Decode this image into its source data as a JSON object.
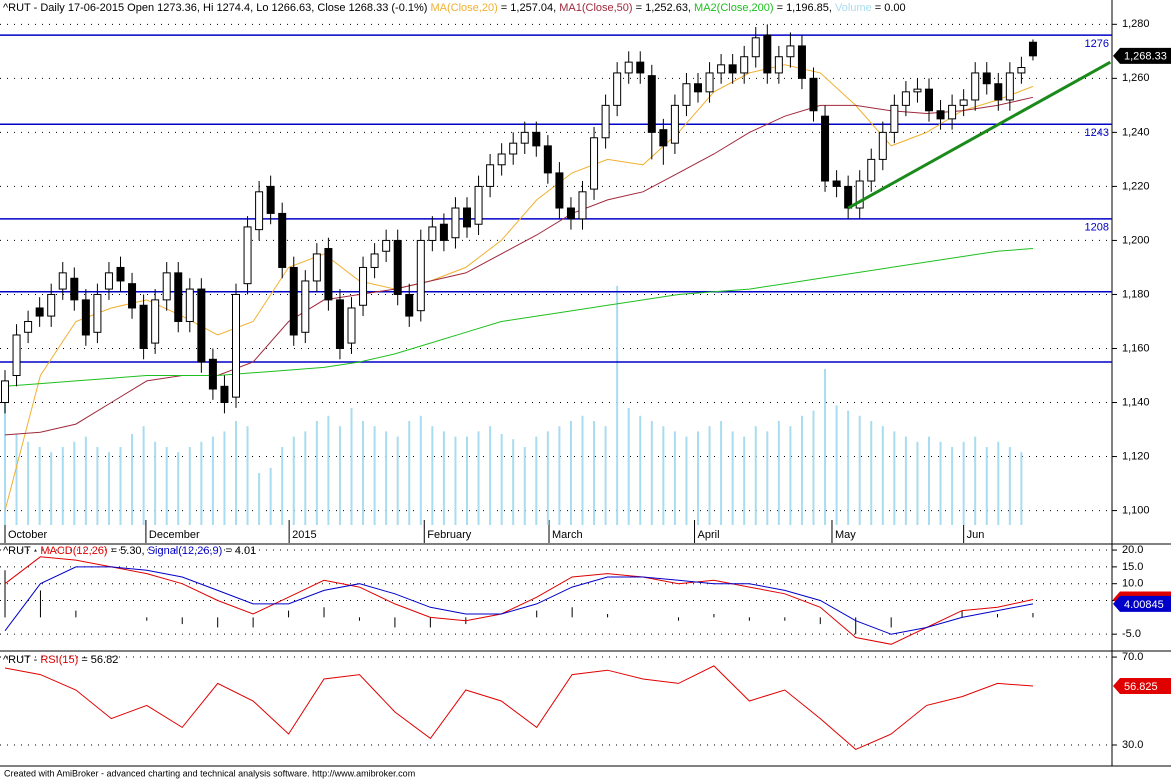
{
  "chart_data": {
    "type": "candlestick",
    "header": [
      {
        "text": "^RUT - Daily 17-06-2015 Open 1273.36, Hi 1274.4, Lo 1266.63, Close 1268.33 (-0.1%) ",
        "color": "#000000"
      },
      {
        "text": "MA(Close,20)",
        "color": "#f0b030"
      },
      {
        "text": " = 1,257.04, ",
        "color": "#000000"
      },
      {
        "text": "MA1(Close,50)",
        "color": "#a0283c"
      },
      {
        "text": " = 1,252.63, ",
        "color": "#000000"
      },
      {
        "text": "MA2(Close,200)",
        "color": "#1fbf1f"
      },
      {
        "text": " = 1,196.85, ",
        "color": "#000000"
      },
      {
        "text": "Volume",
        "color": "#a8dcf0"
      },
      {
        "text": " = 0.00",
        "color": "#000000"
      }
    ],
    "ylim": [
      1088,
      1289
    ],
    "yticks": [
      {
        "value": 1100,
        "label": "1,100"
      },
      {
        "value": 1120,
        "label": "1,120"
      },
      {
        "value": 1140,
        "label": "1,140"
      },
      {
        "value": 1160,
        "label": "1,160"
      },
      {
        "value": 1180,
        "label": "1,180"
      },
      {
        "value": 1200,
        "label": "1,200"
      },
      {
        "value": 1220,
        "label": "1,220"
      },
      {
        "value": 1240,
        "label": "1,240"
      },
      {
        "value": 1260,
        "label": "1,260"
      },
      {
        "value": 1280,
        "label": "1,280"
      }
    ],
    "xticks": [
      {
        "value": 0,
        "label": "October"
      },
      {
        "value": 12.2,
        "label": "December"
      },
      {
        "value": 24.6,
        "label": "2015"
      },
      {
        "value": 36.3,
        "label": "February"
      },
      {
        "value": 47.1,
        "label": "March"
      },
      {
        "value": 59.7,
        "label": "April"
      },
      {
        "value": 71.6,
        "label": "May"
      },
      {
        "value": 83,
        "label": "Jun"
      }
    ],
    "up_color": "#ffffff",
    "down_color": "#000000",
    "open": [
      1140,
      1150,
      1166,
      1175,
      1172,
      1182,
      1186,
      1178,
      1166,
      1182,
      1190,
      1184,
      1176,
      1162,
      1178,
      1188,
      1170,
      1182,
      1156,
      1146,
      1142,
      1184,
      1204,
      1220,
      1210,
      1190,
      1166,
      1185,
      1197,
      1178,
      1162,
      1176,
      1190,
      1196,
      1200,
      1180,
      1174,
      1200,
      1206,
      1201,
      1212,
      1206,
      1220,
      1228,
      1232,
      1236,
      1240,
      1235,
      1225,
      1212,
      1208,
      1219,
      1238,
      1250,
      1262,
      1266,
      1261,
      1241,
      1236,
      1250,
      1258,
      1255,
      1262,
      1265,
      1262,
      1268,
      1276,
      1262,
      1268,
      1272,
      1260,
      1246,
      1222,
      1220,
      1212,
      1222,
      1230,
      1240,
      1250,
      1255,
      1256,
      1248,
      1245,
      1250,
      1252,
      1262,
      1258,
      1252,
      1262,
      1273.36
    ],
    "high": [
      1152,
      1169,
      1174,
      1179,
      1184,
      1192,
      1190,
      1182,
      1184,
      1192,
      1194,
      1188,
      1180,
      1182,
      1192,
      1192,
      1186,
      1186,
      1160,
      1150,
      1184,
      1209,
      1222,
      1224,
      1214,
      1194,
      1189,
      1199,
      1201,
      1182,
      1179,
      1194,
      1199,
      1204,
      1204,
      1184,
      1204,
      1209,
      1210,
      1216,
      1216,
      1224,
      1232,
      1236,
      1240,
      1244,
      1244,
      1239,
      1229,
      1216,
      1222,
      1242,
      1254,
      1266,
      1270,
      1270,
      1265,
      1245,
      1254,
      1262,
      1262,
      1266,
      1269,
      1269,
      1272,
      1279,
      1280,
      1272,
      1277,
      1276,
      1264,
      1250,
      1226,
      1224,
      1226,
      1234,
      1244,
      1254,
      1259,
      1260,
      1260,
      1252,
      1254,
      1256,
      1266,
      1266,
      1262,
      1266,
      1268,
      1274.4
    ],
    "low": [
      1136,
      1146,
      1162,
      1168,
      1168,
      1178,
      1174,
      1161,
      1162,
      1178,
      1181,
      1171,
      1156,
      1158,
      1174,
      1166,
      1166,
      1151,
      1141,
      1136,
      1138,
      1180,
      1200,
      1206,
      1186,
      1161,
      1162,
      1181,
      1174,
      1156,
      1158,
      1172,
      1186,
      1192,
      1176,
      1168,
      1170,
      1196,
      1196,
      1197,
      1201,
      1202,
      1216,
      1224,
      1228,
      1232,
      1231,
      1221,
      1208,
      1204,
      1204,
      1215,
      1234,
      1246,
      1258,
      1258,
      1230,
      1228,
      1232,
      1246,
      1251,
      1251,
      1258,
      1258,
      1258,
      1264,
      1258,
      1258,
      1264,
      1256,
      1244,
      1218,
      1216,
      1208,
      1208,
      1218,
      1226,
      1236,
      1246,
      1251,
      1244,
      1241,
      1241,
      1246,
      1248,
      1254,
      1248,
      1248,
      1258,
      1266.63
    ],
    "close": [
      1148,
      1165,
      1170,
      1172,
      1180,
      1188,
      1178,
      1165,
      1180,
      1188,
      1185,
      1175,
      1160,
      1178,
      1188,
      1170,
      1182,
      1155,
      1145,
      1140,
      1180,
      1205,
      1218,
      1210,
      1190,
      1165,
      1185,
      1195,
      1178,
      1160,
      1175,
      1190,
      1195,
      1200,
      1180,
      1172,
      1200,
      1205,
      1200,
      1212,
      1205,
      1220,
      1228,
      1232,
      1236,
      1240,
      1235,
      1225,
      1212,
      1208,
      1218,
      1238,
      1250,
      1262,
      1266,
      1262,
      1240,
      1235,
      1250,
      1258,
      1255,
      1262,
      1265,
      1262,
      1268,
      1275,
      1262,
      1268,
      1272,
      1260,
      1248,
      1222,
      1220,
      1212,
      1222,
      1230,
      1240,
      1250,
      1255,
      1256,
      1248,
      1245,
      1250,
      1252,
      1262,
      1258,
      1252,
      1262,
      1264,
      1268.33
    ],
    "series": [
      {
        "name": "MA(Close,20)",
        "color": "#f0b030",
        "values": [
          1100,
          1150,
          1170,
          1175,
          1178,
          1172,
          1165,
          1170,
          1190,
          1195,
          1185,
          1182,
          1185,
          1190,
          1200,
          1215,
          1225,
          1230,
          1228,
          1240,
          1255,
          1262,
          1265,
          1262,
          1250,
          1235,
          1240,
          1248,
          1252,
          1257
        ]
      },
      {
        "name": "MA1(Close,50)",
        "color": "#a0283c",
        "values": [
          1128,
          1129,
          1132,
          1140,
          1148,
          1150,
          1150,
          1155,
          1170,
          1178,
          1180,
          1182,
          1185,
          1188,
          1195,
          1202,
          1210,
          1215,
          1218,
          1225,
          1232,
          1240,
          1246,
          1250,
          1250,
          1248,
          1247,
          1248,
          1250,
          1253
        ]
      },
      {
        "name": "MA2(Close,200)",
        "color": "#1fbf1f",
        "values": [
          1146,
          1147,
          1148,
          1149,
          1150,
          1150,
          1150,
          1151,
          1152,
          1153,
          1155,
          1158,
          1162,
          1166,
          1170,
          1172,
          1174,
          1176,
          1178,
          1180,
          1181,
          1182,
          1184,
          1186,
          1188,
          1190,
          1192,
          1194,
          1196,
          1197
        ]
      }
    ],
    "volume": {
      "color": "#a8dcf0",
      "vlim": [
        0,
        100
      ],
      "values": [
        55,
        35,
        32,
        30,
        28,
        30,
        32,
        34,
        30,
        28,
        30,
        35,
        38,
        32,
        30,
        28,
        30,
        32,
        34,
        36,
        40,
        38,
        20,
        22,
        30,
        34,
        36,
        40,
        42,
        38,
        45,
        40,
        38,
        36,
        34,
        40,
        42,
        38,
        36,
        34,
        34,
        36,
        38,
        35,
        33,
        30,
        34,
        36,
        38,
        40,
        42,
        40,
        38,
        92,
        45,
        42,
        40,
        38,
        36,
        34,
        36,
        38,
        40,
        36,
        34,
        38,
        36,
        40,
        38,
        42,
        44,
        60,
        46,
        44,
        42,
        40,
        38,
        36,
        34,
        32,
        34,
        32,
        30,
        32,
        34,
        30,
        32,
        30,
        28,
        0
      ]
    },
    "levels": {
      "color": "#0000c8",
      "items": [
        {
          "value": 1276,
          "label": "1276"
        },
        {
          "value": 1243,
          "label": "1243"
        },
        {
          "value": 1208,
          "label": "1208"
        },
        {
          "value": 1181
        },
        {
          "value": 1155
        }
      ]
    },
    "trendline": {
      "color": "#1a8a1a",
      "from": [
        73,
        1212
      ],
      "to": [
        95.7,
        1266
      ]
    },
    "last_label": {
      "value": 1268.33,
      "label": "1,268.33"
    },
    "macd": {
      "header": [
        {
          "text": "^RUT - ",
          "color": "#000000"
        },
        {
          "text": "MACD(12,26)",
          "color": "#e00000"
        },
        {
          "text": " = 5.30, ",
          "color": "#000000"
        },
        {
          "text": "Signal(12,26,9)",
          "color": "#0000c8"
        },
        {
          "text": " = 4.01",
          "color": "#000000"
        }
      ],
      "ylim": [
        -9.7,
        21.5
      ],
      "yticks": [
        {
          "value": 20,
          "label": "20.0"
        },
        {
          "value": 15,
          "label": "15.0"
        },
        {
          "value": 10,
          "label": "10.0"
        },
        {
          "value": 5,
          "label": "5.0"
        },
        {
          "value": -5,
          "label": "-5.0"
        }
      ],
      "series": [
        {
          "name": "MACD",
          "color": "#e00000",
          "values": [
            10,
            18,
            17,
            15,
            13,
            10,
            5,
            1,
            6,
            11,
            9,
            4,
            0,
            -1,
            1,
            6,
            12,
            13,
            12,
            10,
            11,
            9,
            7,
            3,
            -6,
            -8,
            -3,
            2,
            3,
            5.3
          ]
        },
        {
          "name": "Signal",
          "color": "#0000c8",
          "values": [
            -4,
            10,
            15,
            15,
            14,
            12,
            8,
            4,
            4,
            8,
            10,
            7,
            3,
            1,
            1,
            4,
            9,
            12,
            12,
            11,
            10,
            10,
            8,
            5,
            -1,
            -5,
            -3,
            0,
            2,
            4.01
          ]
        }
      ],
      "histogram": {
        "color": "#000000",
        "values": [
          14,
          8,
          2,
          0,
          -1,
          -2,
          -3,
          -3,
          2,
          3,
          -1,
          -3,
          -3,
          -2,
          0,
          2,
          3,
          1,
          0,
          -1,
          1,
          -1,
          -1,
          -2,
          -5,
          -3,
          0,
          2,
          1,
          1.29
        ]
      },
      "value_labels": [
        {
          "value": 5.29731,
          "label": "5.29731",
          "color": "#e00000"
        },
        {
          "value": 4.00845,
          "label": "4.00845",
          "color": "#0000c8"
        }
      ]
    },
    "rsi": {
      "header": [
        {
          "text": "^RUT - ",
          "color": "#000000"
        },
        {
          "text": "RSI(15)",
          "color": "#e00000"
        },
        {
          "text": " = 56.82",
          "color": "#000000"
        }
      ],
      "ylim": [
        20.9,
        72.3
      ],
      "yticks": [
        {
          "value": 70,
          "label": "70.0"
        },
        {
          "value": 30,
          "label": "30.0"
        }
      ],
      "series": [
        {
          "name": "RSI",
          "color": "#e00000",
          "values": [
            65,
            62,
            55,
            42,
            48,
            38,
            58,
            50,
            35,
            60,
            62,
            45,
            33,
            55,
            50,
            38,
            62,
            64,
            60,
            58,
            66,
            50,
            55,
            42,
            28,
            35,
            48,
            52,
            58,
            56.825
          ]
        }
      ],
      "value_labels": [
        {
          "value": 56.825,
          "label": "56.825",
          "color": "#e00000"
        }
      ]
    },
    "footer": "Created with AmiBroker - advanced charting and technical analysis software. http://www.amibroker.com"
  }
}
